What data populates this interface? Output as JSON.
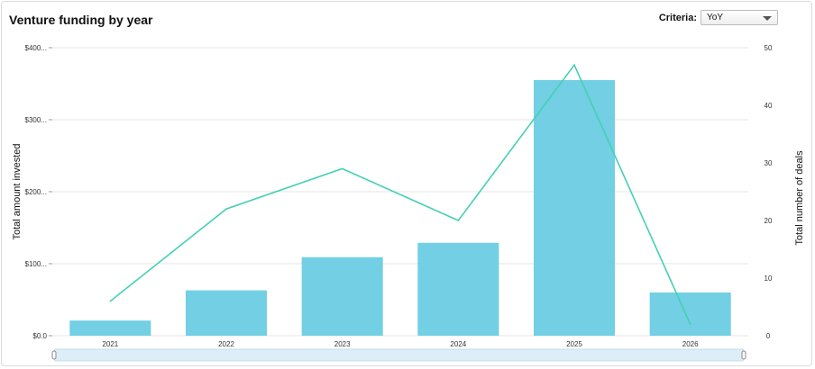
{
  "header": {
    "title": "Venture funding by year",
    "criteria_label": "Criteria:",
    "criteria_value": "YoY"
  },
  "colors": {
    "bar": "#72cfe4",
    "line": "#44d0b4",
    "grid": "#e6e6e6",
    "scrollbar": "#ddeef8"
  },
  "icons": {
    "dropdown": "chevron-down-icon",
    "scroll_handle": "drag-handle-icon"
  },
  "chart_data": {
    "type": "bar",
    "categories": [
      "2021",
      "2022",
      "2023",
      "2024",
      "2025",
      "2026"
    ],
    "series": [
      {
        "kind": "bar",
        "axis": "left",
        "values": [
          21,
          63,
          109,
          129,
          355,
          60
        ]
      },
      {
        "kind": "line",
        "axis": "right",
        "values": [
          6,
          22,
          29,
          20,
          47,
          2
        ]
      }
    ],
    "ylabel": "Total amount invested",
    "y2label": "Total number of deals",
    "ylim": [
      0,
      400
    ],
    "y2lim": [
      0,
      50
    ],
    "yticks": [
      "$0.0",
      "$100...",
      "$200...",
      "$300...",
      "$400..."
    ],
    "y2ticks": [
      "0",
      "10",
      "20",
      "30",
      "40",
      "50"
    ],
    "grid": true,
    "legend": "none"
  }
}
